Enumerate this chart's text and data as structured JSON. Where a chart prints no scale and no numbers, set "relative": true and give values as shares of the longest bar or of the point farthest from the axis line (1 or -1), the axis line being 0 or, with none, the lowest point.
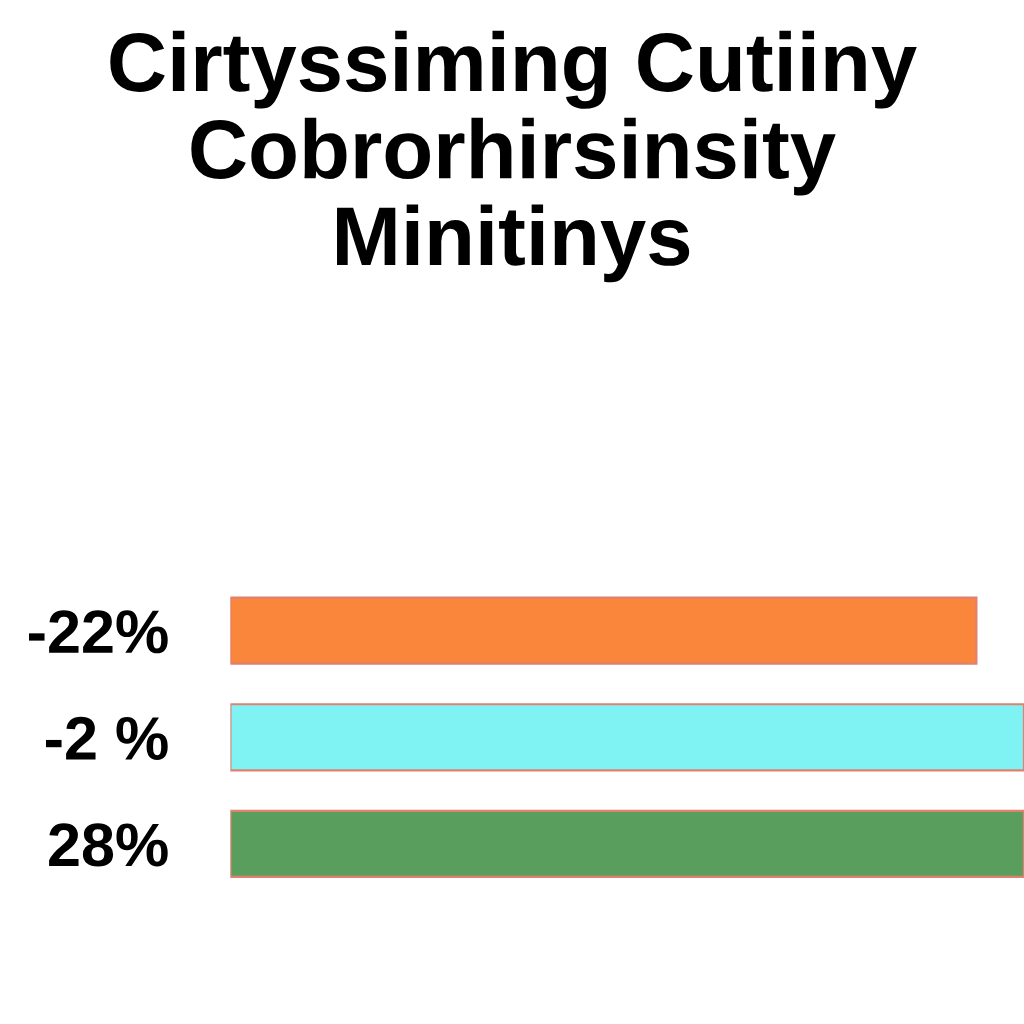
{
  "chart_data": {
    "type": "bar",
    "orientation": "horizontal",
    "relative": true,
    "title": "Cirtyssiming Cutiiny\nCobrorhirsinsity\nMinitinys",
    "categories": [
      "-22%",
      "-2 %",
      "28%"
    ],
    "values": [
      0.94,
      1,
      1
    ],
    "colors": [
      "#f9863a",
      "#7ff3f3",
      "#5a9e5e"
    ],
    "grid": false,
    "legend": false
  }
}
